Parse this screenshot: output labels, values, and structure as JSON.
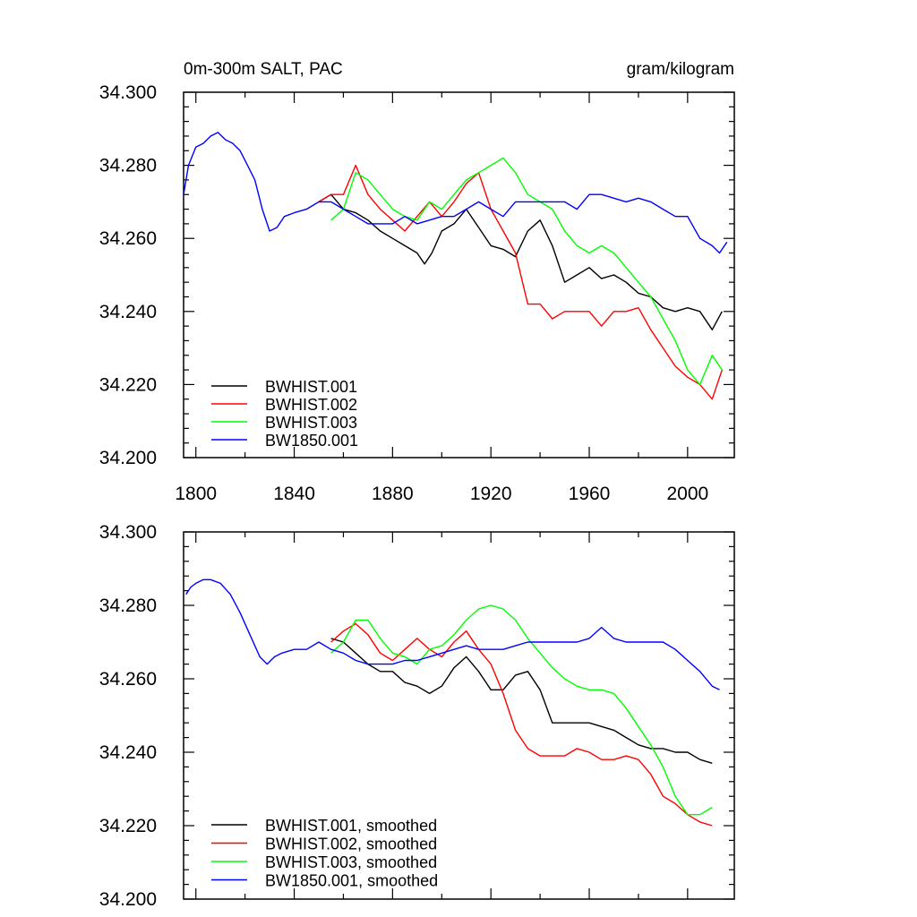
{
  "chart_data": [
    {
      "type": "line",
      "title": "0m-300m SALT, PAC",
      "units": "gram/kilogram",
      "xlim": [
        1795,
        2019
      ],
      "ylim": [
        34.2,
        34.3
      ],
      "xticks": [
        1800,
        1840,
        1880,
        1920,
        1960,
        2000
      ],
      "yticks": [
        34.2,
        34.22,
        34.24,
        34.26,
        34.28,
        34.3
      ],
      "ytick_labels": [
        "34.200",
        "34.220",
        "34.240",
        "34.260",
        "34.280",
        "34.300"
      ],
      "xtick_labels": [
        "1800",
        "1840",
        "1880",
        "1920",
        "1960",
        "2000"
      ],
      "legend_position": "bottom-left",
      "series": [
        {
          "name": "BWHIST.001",
          "color": "#000000",
          "x": [
            1850,
            1855,
            1860,
            1865,
            1870,
            1875,
            1880,
            1885,
            1890,
            1893,
            1896,
            1900,
            1905,
            1910,
            1915,
            1920,
            1925,
            1930,
            1935,
            1940,
            1945,
            1950,
            1955,
            1960,
            1965,
            1970,
            1975,
            1980,
            1985,
            1990,
            1995,
            2000,
            2005,
            2010,
            2014
          ],
          "y": [
            34.27,
            34.272,
            34.268,
            34.267,
            34.265,
            34.262,
            34.26,
            34.258,
            34.256,
            34.253,
            34.256,
            34.262,
            34.264,
            34.268,
            34.263,
            34.258,
            34.257,
            34.255,
            34.262,
            34.265,
            34.258,
            34.248,
            34.25,
            34.252,
            34.249,
            34.25,
            34.248,
            34.245,
            34.244,
            34.241,
            34.24,
            34.241,
            34.24,
            34.235,
            34.24
          ]
        },
        {
          "name": "BWHIST.002",
          "color": "#ff0000",
          "x": [
            1850,
            1855,
            1860,
            1865,
            1870,
            1875,
            1880,
            1885,
            1890,
            1895,
            1900,
            1905,
            1910,
            1915,
            1920,
            1925,
            1930,
            1935,
            1940,
            1945,
            1950,
            1955,
            1960,
            1965,
            1970,
            1975,
            1980,
            1985,
            1990,
            1995,
            2000,
            2005,
            2010,
            2014
          ],
          "y": [
            34.27,
            34.272,
            34.272,
            34.28,
            34.272,
            34.268,
            34.265,
            34.262,
            34.266,
            34.27,
            34.266,
            34.27,
            34.275,
            34.278,
            34.268,
            34.262,
            34.256,
            34.242,
            34.242,
            34.238,
            34.24,
            34.24,
            34.24,
            34.236,
            34.24,
            34.24,
            34.241,
            34.235,
            34.23,
            34.225,
            34.222,
            34.22,
            34.216,
            34.224
          ]
        },
        {
          "name": "BWHIST.003",
          "color": "#00ff00",
          "x": [
            1855,
            1860,
            1865,
            1870,
            1875,
            1880,
            1885,
            1890,
            1895,
            1900,
            1905,
            1910,
            1915,
            1920,
            1925,
            1930,
            1935,
            1940,
            1945,
            1950,
            1955,
            1960,
            1965,
            1970,
            1975,
            1980,
            1985,
            1990,
            1995,
            2000,
            2005,
            2010,
            2014
          ],
          "y": [
            34.265,
            34.268,
            34.278,
            34.276,
            34.272,
            34.268,
            34.266,
            34.265,
            34.27,
            34.268,
            34.272,
            34.276,
            34.278,
            34.28,
            34.282,
            34.278,
            34.272,
            34.27,
            34.268,
            34.262,
            34.258,
            34.256,
            34.258,
            34.256,
            34.252,
            34.248,
            34.244,
            34.238,
            34.232,
            34.224,
            34.22,
            34.228,
            34.224
          ]
        },
        {
          "name": "BW1850.001",
          "color": "#0000ff",
          "x": [
            1795,
            1797,
            1800,
            1803,
            1806,
            1809,
            1812,
            1815,
            1818,
            1821,
            1824,
            1827,
            1830,
            1833,
            1836,
            1840,
            1845,
            1850,
            1855,
            1860,
            1865,
            1870,
            1875,
            1880,
            1885,
            1890,
            1895,
            1900,
            1905,
            1910,
            1915,
            1920,
            1925,
            1930,
            1935,
            1940,
            1945,
            1950,
            1955,
            1960,
            1965,
            1970,
            1975,
            1980,
            1985,
            1990,
            1995,
            2000,
            2005,
            2010,
            2013,
            2016
          ],
          "y": [
            34.272,
            34.28,
            34.285,
            34.286,
            34.288,
            34.289,
            34.287,
            34.286,
            34.284,
            34.28,
            34.276,
            34.268,
            34.262,
            34.263,
            34.266,
            34.267,
            34.268,
            34.27,
            34.27,
            34.268,
            34.266,
            34.264,
            34.264,
            34.264,
            34.266,
            34.264,
            34.265,
            34.266,
            34.266,
            34.268,
            34.27,
            34.268,
            34.266,
            34.27,
            34.27,
            34.27,
            34.27,
            34.27,
            34.268,
            34.272,
            34.272,
            34.271,
            34.27,
            34.271,
            34.27,
            34.268,
            34.266,
            34.266,
            34.26,
            34.258,
            34.256,
            34.259
          ]
        }
      ]
    },
    {
      "type": "line",
      "title": "",
      "xlim": [
        1795,
        2019
      ],
      "ylim": [
        34.2,
        34.3
      ],
      "xticks": [
        1800,
        1840,
        1880,
        1920,
        1960,
        2000
      ],
      "yticks": [
        34.2,
        34.22,
        34.24,
        34.26,
        34.28,
        34.3
      ],
      "ytick_labels": [
        "34.200",
        "34.220",
        "34.240",
        "34.260",
        "34.280",
        "34.300"
      ],
      "legend_position": "bottom-left",
      "series": [
        {
          "name": "BWHIST.001, smoothed",
          "color": "#000000",
          "x": [
            1855,
            1860,
            1865,
            1870,
            1875,
            1880,
            1885,
            1890,
            1895,
            1900,
            1905,
            1910,
            1915,
            1920,
            1925,
            1930,
            1935,
            1940,
            1945,
            1950,
            1955,
            1960,
            1965,
            1970,
            1975,
            1980,
            1985,
            1990,
            1995,
            2000,
            2005,
            2010
          ],
          "y": [
            34.271,
            34.27,
            34.267,
            34.264,
            34.262,
            34.262,
            34.259,
            34.258,
            34.256,
            34.258,
            34.263,
            34.266,
            34.262,
            34.257,
            34.257,
            34.261,
            34.262,
            34.257,
            34.248,
            34.248,
            34.248,
            34.248,
            34.247,
            34.246,
            34.244,
            34.242,
            34.241,
            34.241,
            34.24,
            34.24,
            34.238,
            34.237
          ]
        },
        {
          "name": "BWHIST.002, smoothed",
          "color": "#ff0000",
          "x": [
            1855,
            1860,
            1865,
            1870,
            1875,
            1880,
            1885,
            1890,
            1895,
            1900,
            1905,
            1910,
            1915,
            1920,
            1925,
            1930,
            1935,
            1940,
            1945,
            1950,
            1955,
            1960,
            1965,
            1970,
            1975,
            1980,
            1985,
            1990,
            1995,
            2000,
            2005,
            2010
          ],
          "y": [
            34.27,
            34.273,
            34.275,
            34.272,
            34.267,
            34.265,
            34.268,
            34.271,
            34.268,
            34.266,
            34.27,
            34.273,
            34.268,
            34.264,
            34.256,
            34.246,
            34.241,
            34.239,
            34.239,
            34.239,
            34.241,
            34.24,
            34.238,
            34.238,
            34.239,
            34.238,
            34.234,
            34.228,
            34.226,
            34.223,
            34.221,
            34.22
          ]
        },
        {
          "name": "BWHIST.003, smoothed",
          "color": "#00ff00",
          "x": [
            1855,
            1860,
            1865,
            1870,
            1875,
            1880,
            1885,
            1890,
            1895,
            1900,
            1905,
            1910,
            1915,
            1920,
            1925,
            1930,
            1935,
            1940,
            1945,
            1950,
            1955,
            1960,
            1965,
            1970,
            1975,
            1980,
            1985,
            1990,
            1995,
            2000,
            2005,
            2010
          ],
          "y": [
            34.267,
            34.27,
            34.276,
            34.276,
            34.271,
            34.267,
            34.266,
            34.264,
            34.268,
            34.269,
            34.272,
            34.276,
            34.279,
            34.28,
            34.279,
            34.276,
            34.271,
            34.267,
            34.263,
            34.26,
            34.258,
            34.257,
            34.257,
            34.256,
            34.252,
            34.247,
            34.242,
            34.236,
            34.228,
            34.223,
            34.223,
            34.225
          ]
        },
        {
          "name": "BW1850.001, smoothed",
          "color": "#0000ff",
          "x": [
            1796,
            1798,
            1800,
            1803,
            1806,
            1810,
            1814,
            1818,
            1822,
            1826,
            1829,
            1832,
            1835,
            1840,
            1845,
            1850,
            1855,
            1860,
            1865,
            1870,
            1875,
            1880,
            1885,
            1890,
            1895,
            1900,
            1905,
            1910,
            1915,
            1920,
            1925,
            1930,
            1935,
            1940,
            1945,
            1950,
            1955,
            1960,
            1965,
            1970,
            1975,
            1980,
            1985,
            1990,
            1995,
            2000,
            2005,
            2010,
            2013
          ],
          "y": [
            34.283,
            34.285,
            34.286,
            34.287,
            34.287,
            34.286,
            34.283,
            34.278,
            34.272,
            34.266,
            34.264,
            34.266,
            34.267,
            34.268,
            34.268,
            34.27,
            34.268,
            34.267,
            34.265,
            34.264,
            34.264,
            34.264,
            34.265,
            34.265,
            34.266,
            34.267,
            34.268,
            34.269,
            34.268,
            34.268,
            34.268,
            34.269,
            34.27,
            34.27,
            34.27,
            34.27,
            34.27,
            34.271,
            34.274,
            34.271,
            34.27,
            34.27,
            34.27,
            34.27,
            34.268,
            34.265,
            34.262,
            34.258,
            34.257
          ]
        }
      ]
    }
  ]
}
